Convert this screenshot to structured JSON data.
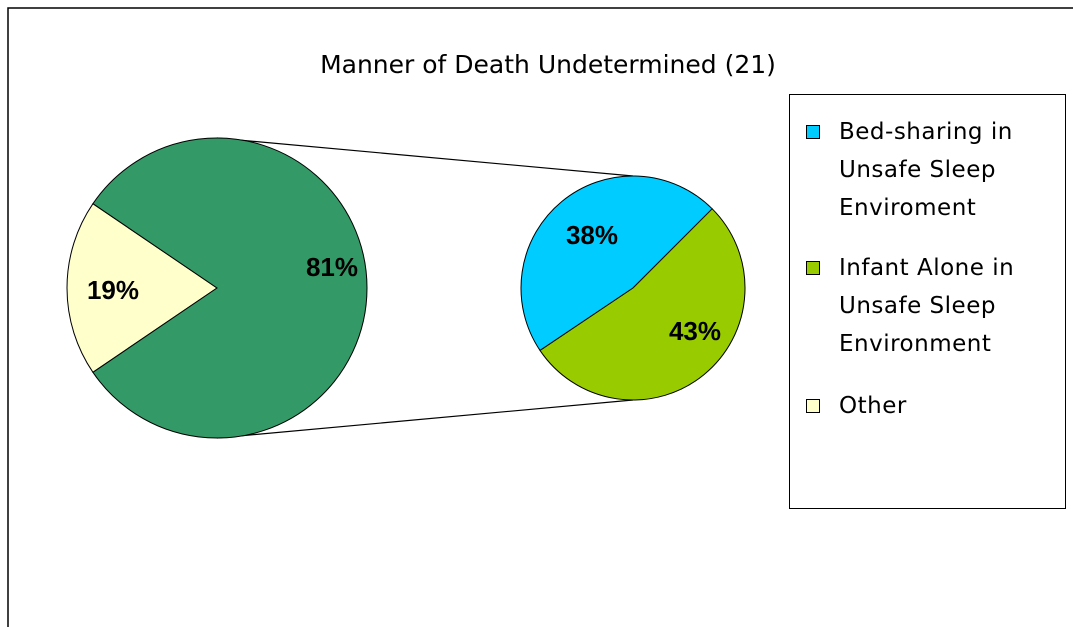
{
  "chart_data": {
    "type": "pie-of-pie",
    "title": "Manner of Death Undetermined (21)",
    "categories": [
      "Bed-sharing in Unsafe Sleep Enviroment",
      "Infant Alone in Unsafe Sleep Environment",
      "Other"
    ],
    "values": [
      38,
      43,
      19
    ],
    "value_labels": [
      "38%",
      "43%",
      "19%"
    ],
    "colors": [
      "#00ccff",
      "#99cc00",
      "#ffffcc"
    ],
    "combined": {
      "value": 81,
      "value_label": "81%",
      "color": "#339966"
    }
  }
}
